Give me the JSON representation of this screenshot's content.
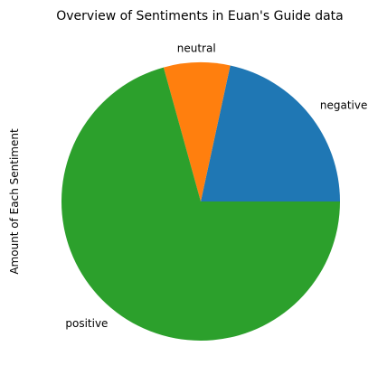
{
  "chart_data": {
    "type": "pie",
    "title": "Overview of Sentiments in Euan's Guide data",
    "ylabel": "Amount of Each Sentiment",
    "slices": [
      {
        "label": "negative",
        "value": 21.6,
        "color": "#1f77b4"
      },
      {
        "label": "neutral",
        "value": 7.7,
        "color": "#ff7f0e"
      },
      {
        "label": "positive",
        "value": 70.7,
        "color": "#2ca02c"
      }
    ],
    "start_angle_deg": 0,
    "direction": "counterclockwise",
    "legend": "none"
  }
}
